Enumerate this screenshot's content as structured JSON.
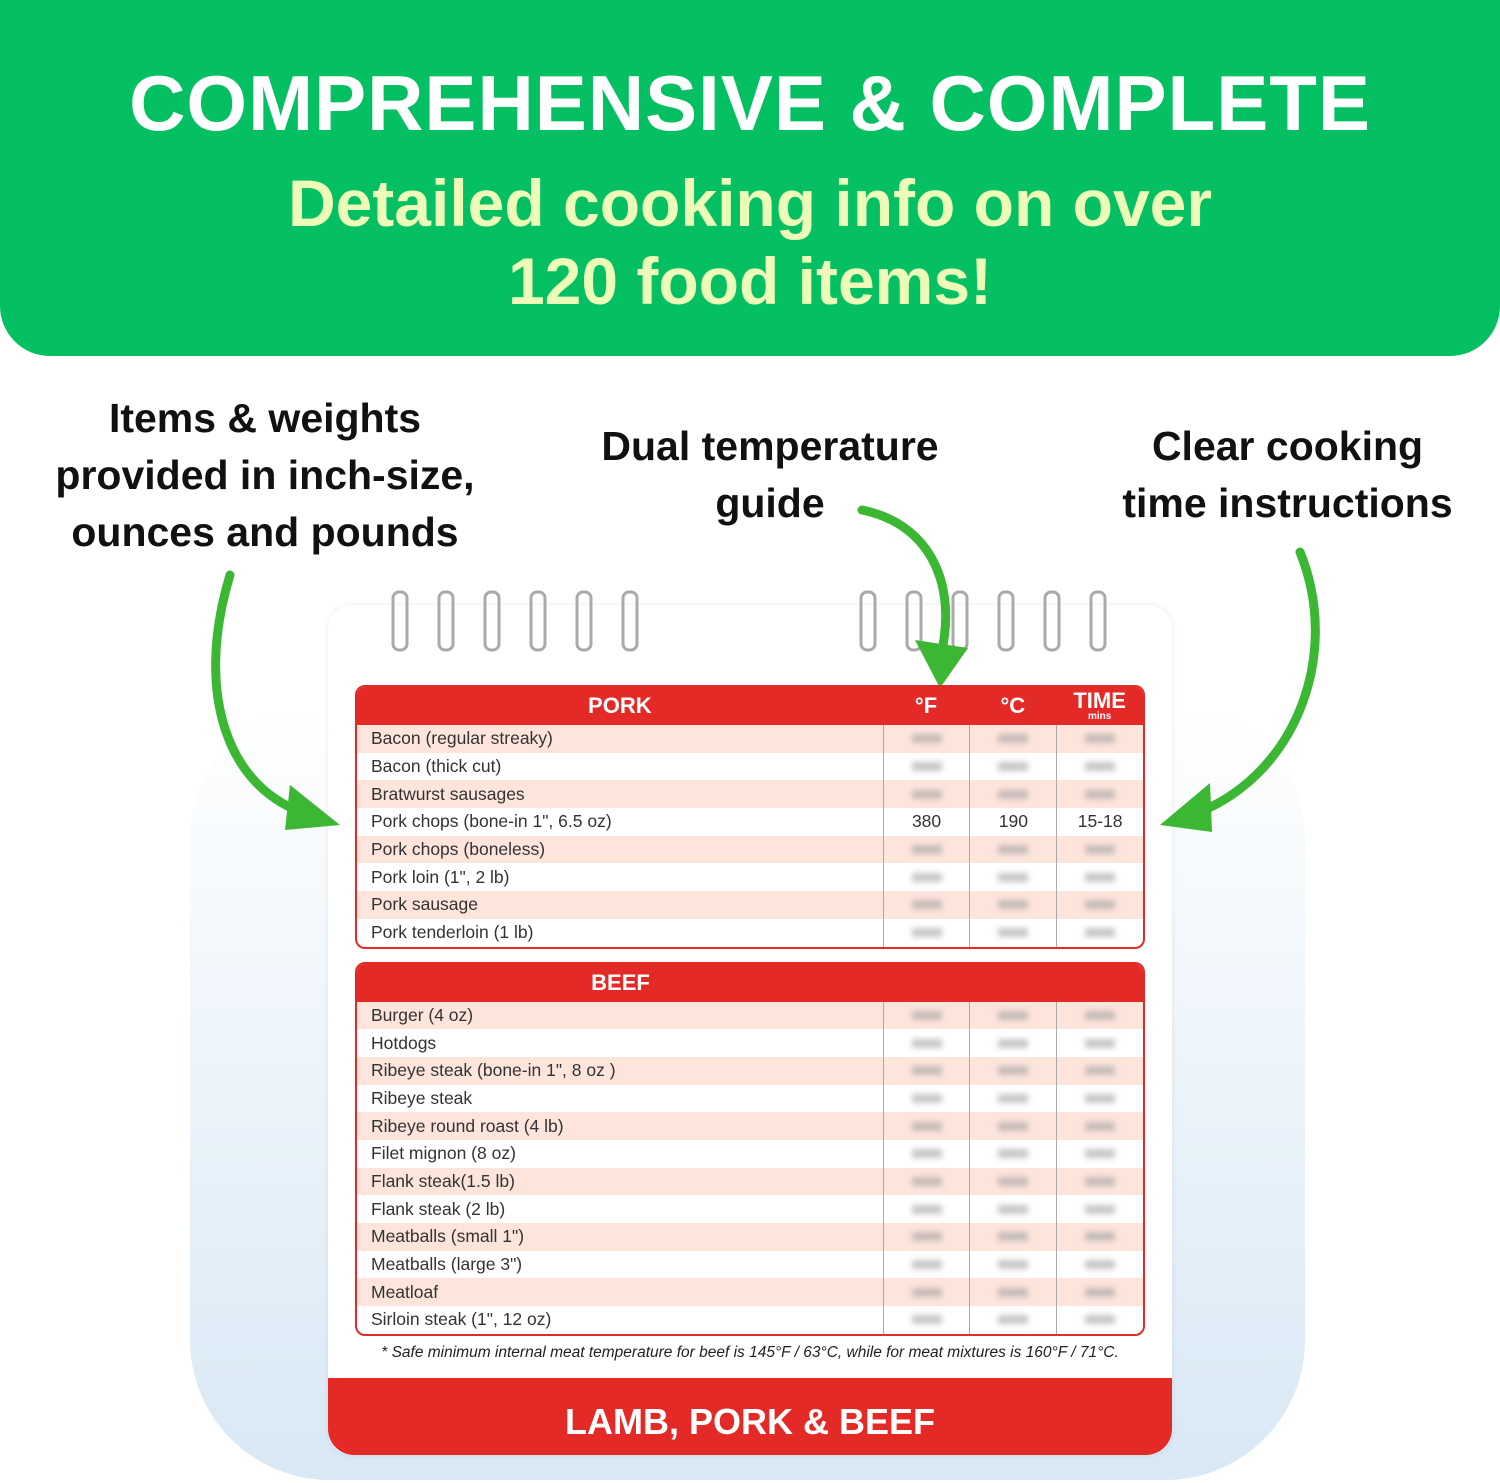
{
  "header": {
    "title": "COMPREHENSIVE & COMPLETE",
    "subtitle_lines": [
      "Detailed cooking info on over",
      "120 food items!"
    ]
  },
  "callouts": [
    {
      "lines": [
        "Items & weights",
        "provided in inch-size,",
        "ounces and pounds"
      ]
    },
    {
      "lines": [
        "Dual temperature",
        "guide"
      ]
    },
    {
      "lines": [
        "Clear cooking",
        "time instructions"
      ]
    }
  ],
  "table": {
    "columns": {
      "fahrenheit": "°F",
      "celsius": "°C",
      "time": "TIME",
      "time_unit": "mins"
    },
    "sections": [
      {
        "title": "PORK",
        "rows": [
          {
            "item": "Bacon (regular streaky)"
          },
          {
            "item": "Bacon (thick cut)"
          },
          {
            "item": "Bratwurst sausages"
          },
          {
            "item": "Pork chops (bone-in 1\", 6.5 oz)",
            "fahrenheit": "380",
            "celsius": "190",
            "time": "15-18"
          },
          {
            "item": "Pork chops (boneless)"
          },
          {
            "item": "Pork loin (1\", 2 lb)"
          },
          {
            "item": "Pork sausage"
          },
          {
            "item": "Pork tenderloin (1 lb)"
          }
        ]
      },
      {
        "title": "BEEF",
        "rows": [
          {
            "item": "Burger (4 oz)"
          },
          {
            "item": "Hotdogs"
          },
          {
            "item": "Ribeye steak (bone-in 1\", 8 oz )"
          },
          {
            "item": "Ribeye steak"
          },
          {
            "item": "Ribeye round roast (4 lb)"
          },
          {
            "item": "Filet mignon (8 oz)"
          },
          {
            "item": "Flank steak(1.5 lb)"
          },
          {
            "item": "Flank steak (2 lb)"
          },
          {
            "item": "Meatballs (small 1\")"
          },
          {
            "item": "Meatballs (large 3\")"
          },
          {
            "item": "Meatloaf"
          },
          {
            "item": "Sirloin steak (1\", 12 oz)"
          }
        ]
      }
    ]
  },
  "footnote": "* Safe minimum internal meat temperature for beef is 145°F / 63°C, while for meat mixtures is 160°F / 71°C.",
  "footer": "LAMB, PORK & BEEF"
}
